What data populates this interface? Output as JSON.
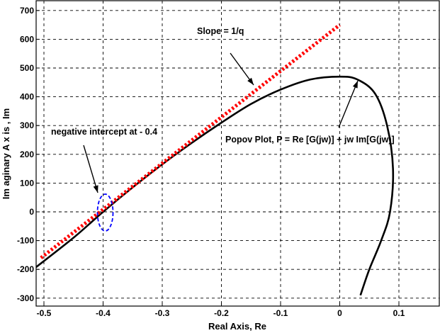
{
  "chart_data": {
    "type": "line",
    "xlabel": "Real Axis, Re",
    "ylabel": "Im aginary  A x is , Im",
    "xlim": [
      -0.52,
      0.17
    ],
    "ylim": [
      -310,
      720
    ],
    "xticks": [
      -0.5,
      -0.4,
      -0.3,
      -0.2,
      -0.1,
      0,
      0.1
    ],
    "xtick_labels": [
      "-0.5",
      "-0.4",
      "-0.3",
      "-0.2",
      "-0.1",
      "0",
      "0.1"
    ],
    "yticks": [
      -300,
      -200,
      -100,
      0,
      100,
      200,
      300,
      400,
      500,
      600,
      700
    ],
    "ytick_labels": [
      "-300",
      "-200",
      "-100",
      "0",
      "100",
      "200",
      "300",
      "400",
      "500",
      "600",
      "700"
    ],
    "grid": true,
    "series": [
      {
        "color": "#000000",
        "style": "solid",
        "x": [
          -0.515,
          -0.45,
          -0.4,
          -0.35,
          -0.3,
          -0.25,
          -0.2,
          -0.15,
          -0.1,
          -0.05,
          0,
          0.03,
          0.06,
          0.08,
          0.09,
          0.085,
          0.07,
          0.05,
          0.035
        ],
        "y": [
          -195,
          -90,
          0,
          85,
          165,
          240,
          310,
          375,
          425,
          460,
          470,
          460,
          410,
          300,
          150,
          0,
          -100,
          -200,
          -290
        ]
      },
      {
        "color": "#ff0000",
        "style": "dotted",
        "x": [
          -0.505,
          0.0
        ],
        "y": [
          -160,
          650
        ]
      },
      {
        "color": "#0000ff",
        "style": "dashed-ellipse",
        "x": [
          -0.4
        ],
        "y": [
          0
        ]
      }
    ],
    "annotations": [
      {
        "text": "Slope = 1/q"
      },
      {
        "text": "negative intercept at - 0.4"
      },
      {
        "text": "Popov Plot, P = Re [G(jw)] + jw Im[G(jw)]"
      }
    ]
  }
}
